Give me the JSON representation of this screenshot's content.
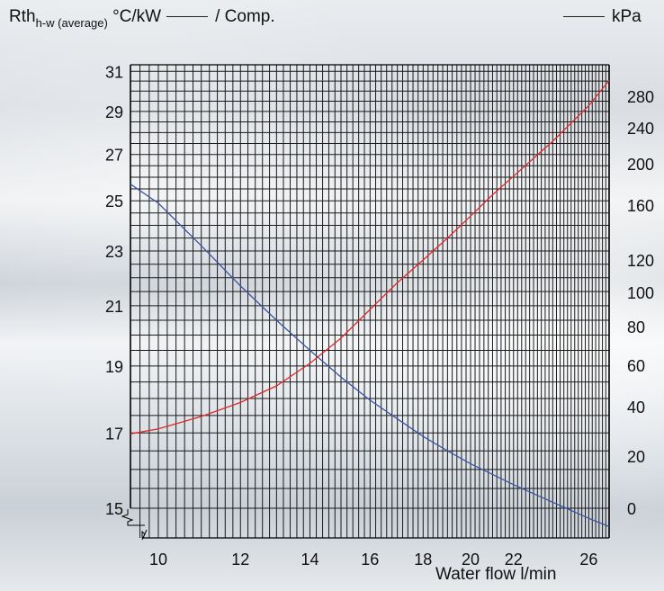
{
  "header": {
    "left_main": "Rth",
    "left_sub": "h-w (average)",
    "left_unit": "°C/kW",
    "left_tail": "/ Comp.",
    "right_unit": "kPa"
  },
  "chart_data": {
    "type": "line",
    "xlabel": "Water flow l/min",
    "x_scale": "log",
    "xlim": [
      9.4,
      27.2
    ],
    "x_ticks": [
      10,
      12,
      14,
      16,
      18,
      20,
      22,
      26
    ],
    "y_left": {
      "label": "Rth h-w (average) °C/kW",
      "scale": "log",
      "ylim": [
        15,
        31.2
      ],
      "ticks": [
        15,
        17,
        19,
        21,
        23,
        25,
        27,
        29,
        31
      ]
    },
    "y_right": {
      "label": "kPa",
      "ticks": [
        0,
        20,
        40,
        60,
        80,
        100,
        120,
        160,
        200,
        240,
        280
      ]
    },
    "series": [
      {
        "color": "#3a54a4",
        "axis": "left",
        "x": [
          9.4,
          10,
          11,
          12,
          13,
          14,
          15,
          16,
          17,
          18,
          19,
          20,
          22,
          24,
          26,
          27.2
        ],
        "y": [
          25.7,
          24.9,
          23.2,
          21.7,
          20.5,
          19.5,
          18.65,
          17.95,
          17.4,
          16.9,
          16.5,
          16.15,
          15.6,
          15.15,
          14.75,
          14.55
        ]
      },
      {
        "color": "#e0282a",
        "axis": "right",
        "x": [
          9.4,
          10,
          11,
          12,
          13,
          14,
          15,
          16,
          17,
          18,
          19,
          20,
          21,
          22,
          24,
          26,
          27.2
        ],
        "y": [
          29,
          31,
          36,
          42,
          50,
          61,
          74,
          90,
          106,
          120,
          136,
          152,
          170,
          188,
          225,
          268,
          300
        ]
      }
    ]
  }
}
